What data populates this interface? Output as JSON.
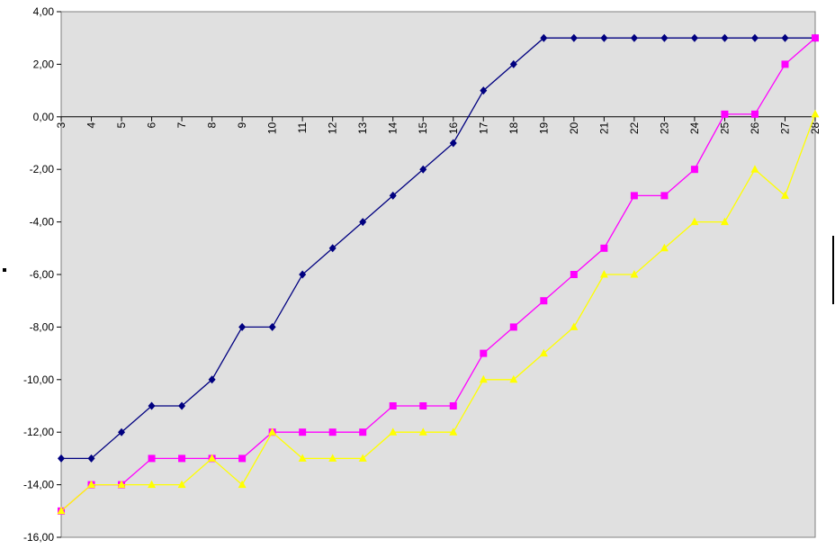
{
  "chart_data": {
    "type": "line",
    "title": "",
    "xlabel": "",
    "ylabel": "",
    "grid": false,
    "ylim": [
      -16,
      4
    ],
    "yticks": [
      "4,00",
      "2,00",
      "0,00",
      "-2,00",
      "-4,00",
      "-6,00",
      "-8,00",
      "-10,00",
      "-12,00",
      "-14,00",
      "-16,00"
    ],
    "x": [
      "3",
      "4",
      "5",
      "6",
      "7",
      "8",
      "9",
      "10",
      "11",
      "12",
      "13",
      "14",
      "15",
      "16",
      "17",
      "18",
      "19",
      "20",
      "21",
      "22",
      "23",
      "24",
      "25",
      "26",
      "27",
      "28"
    ],
    "series": [
      {
        "color": "#000080",
        "marker": "diamond",
        "values": [
          -13,
          -13,
          -12,
          -11,
          -11,
          -10,
          -8,
          -8,
          -6,
          -5,
          -4,
          -3,
          -2,
          -1,
          1,
          2,
          3,
          3,
          3,
          3,
          3,
          3,
          3,
          3,
          3,
          3
        ]
      },
      {
        "color": "#FF00FF",
        "marker": "square",
        "values": [
          -15,
          -14,
          -14,
          -13,
          -13,
          -13,
          -13,
          -12,
          -12,
          -12,
          -12,
          -11,
          -11,
          -11,
          -9,
          -8,
          -7,
          -6,
          -5,
          -3,
          -3,
          -2,
          0.1,
          0.1,
          2,
          3
        ]
      },
      {
        "color": "#FFFF00",
        "marker": "triangle",
        "values": [
          -15,
          -14,
          -14,
          -14,
          -14,
          -13,
          -14,
          -12,
          -13,
          -13,
          -13,
          -12,
          -12,
          -12,
          -10,
          -10,
          -9,
          -8,
          -6,
          -6,
          -5,
          -4,
          -4,
          -2,
          -3,
          0.1
        ]
      }
    ],
    "plot_background": "#E0E0E0"
  }
}
